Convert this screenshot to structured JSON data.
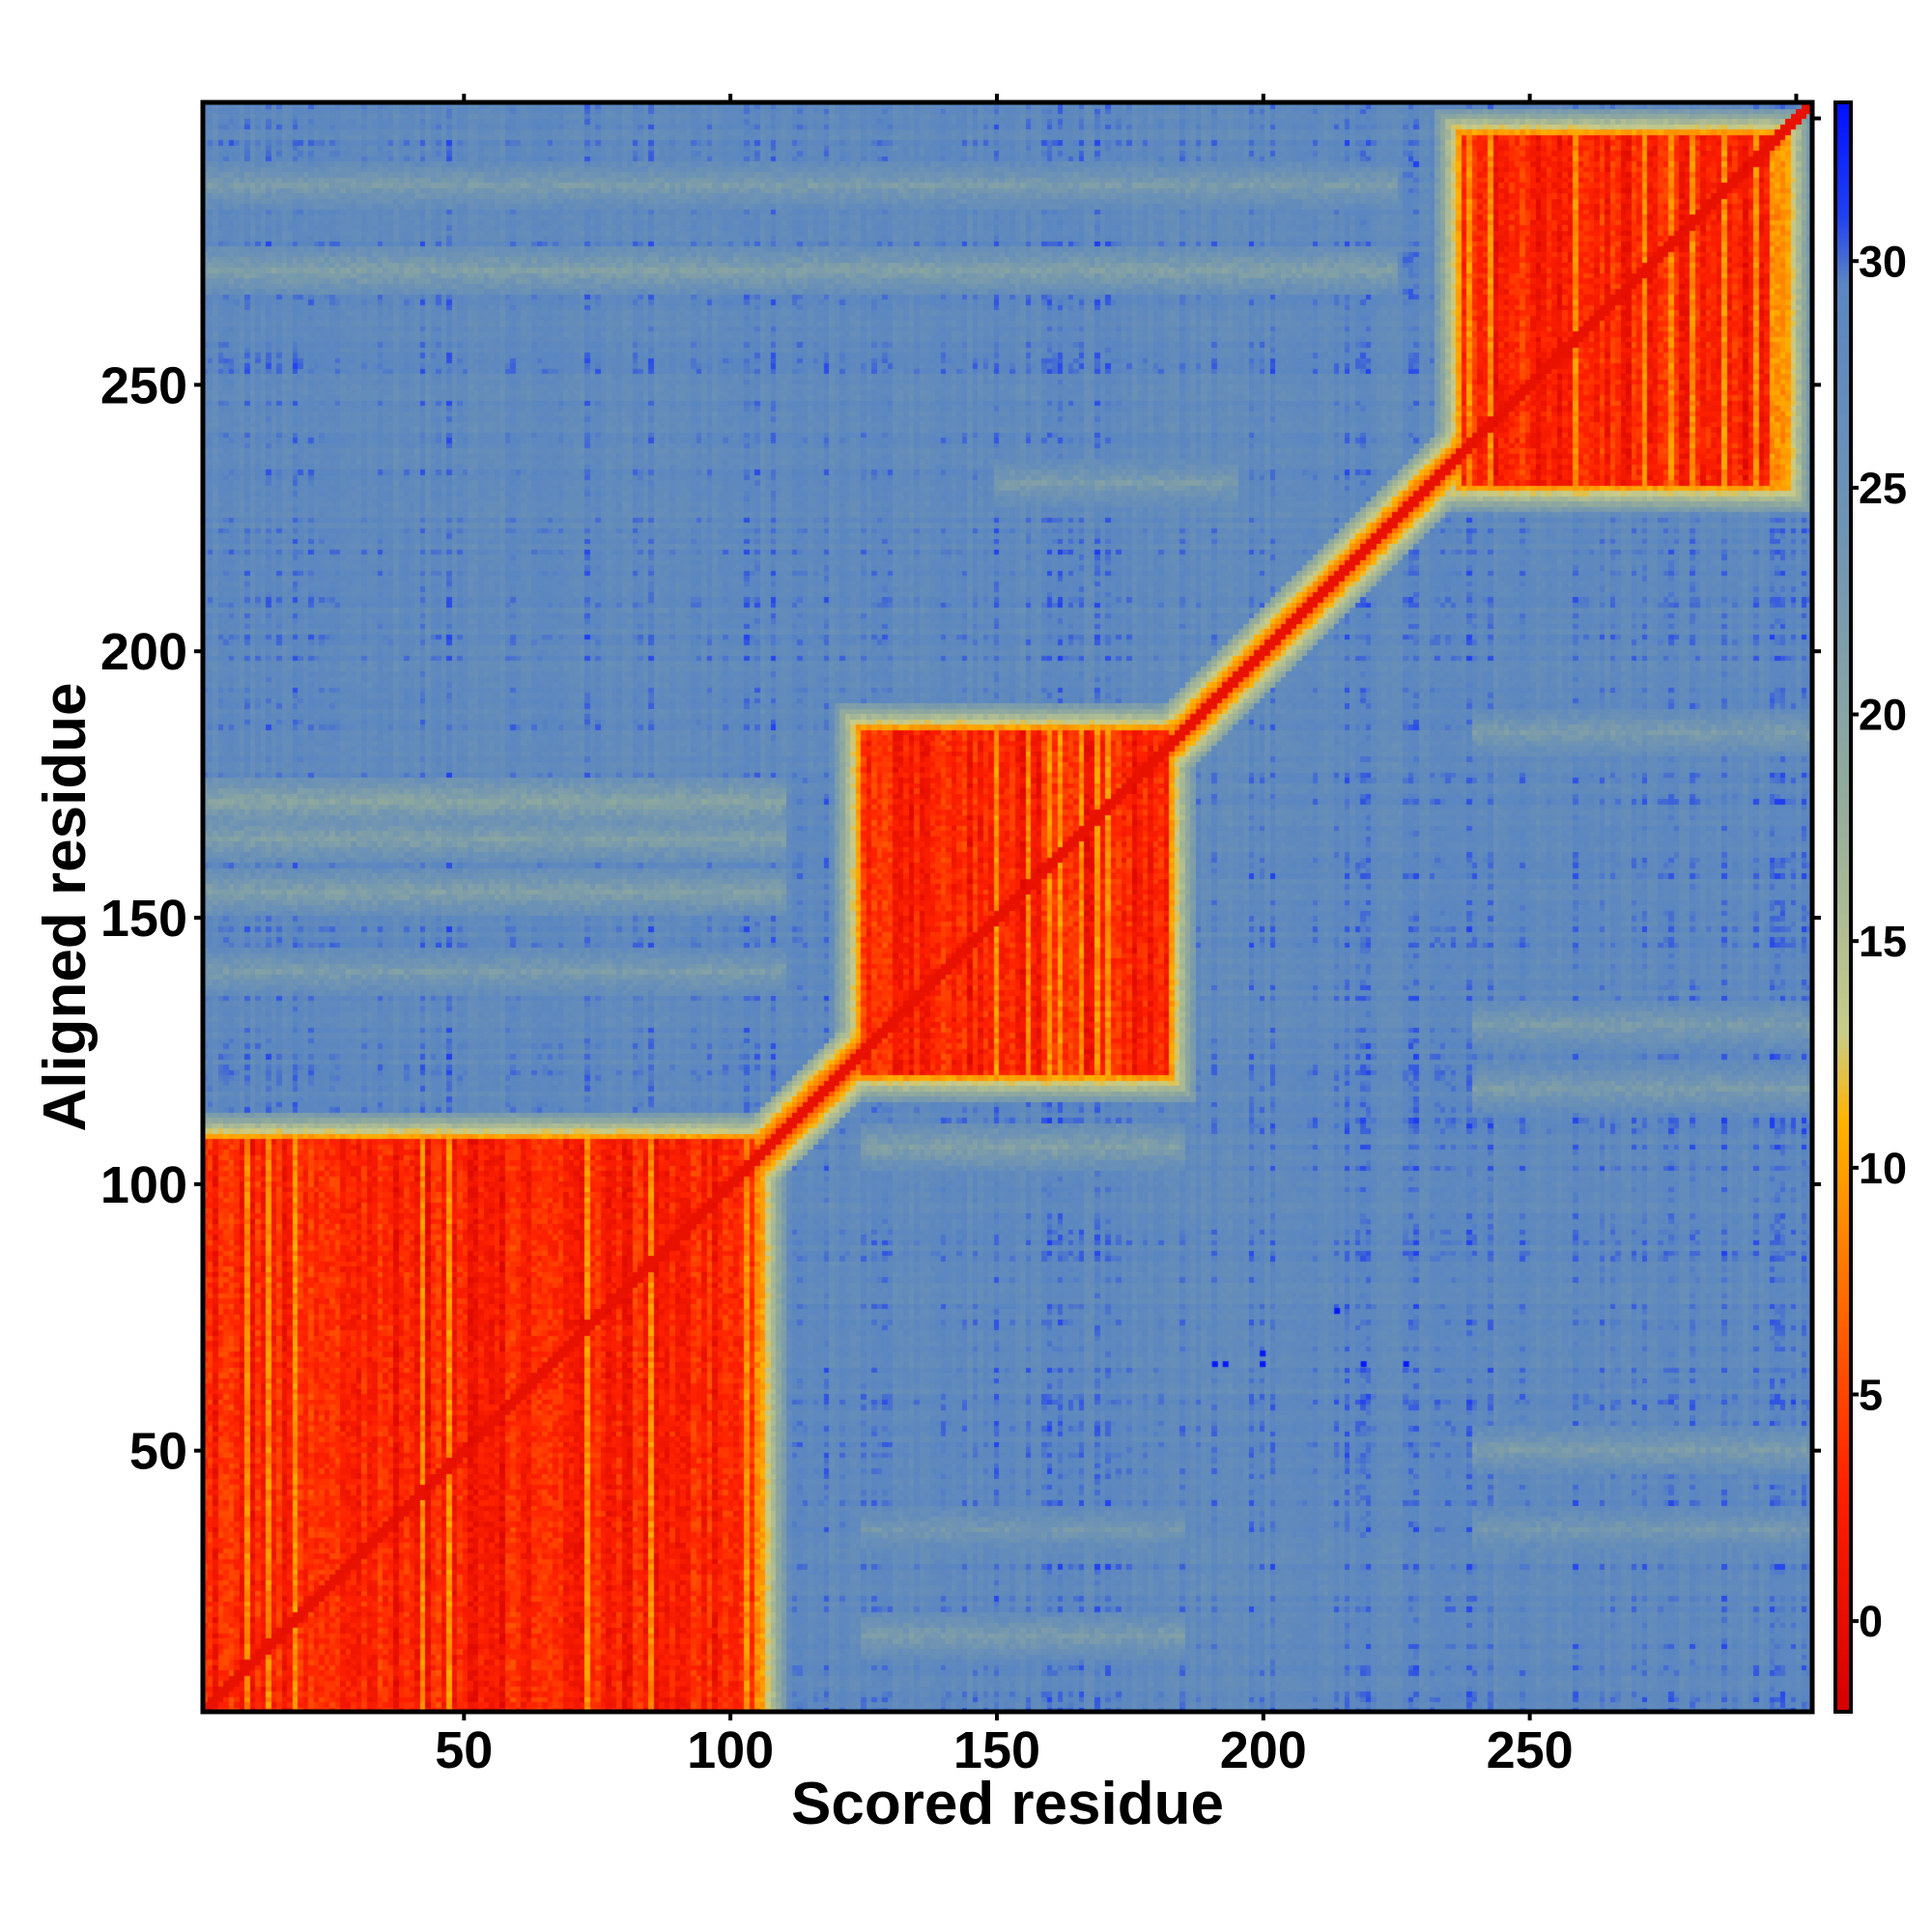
{
  "chart_data": {
    "type": "heatmap",
    "title": "",
    "xlabel": "Scored residue",
    "ylabel": "Aligned residue",
    "n_residues": 303,
    "xlim": [
      1,
      303
    ],
    "ylim": [
      1,
      303
    ],
    "x_ticks": [
      50,
      100,
      150,
      200,
      250
    ],
    "y_ticks": [
      50,
      100,
      150,
      200,
      250
    ],
    "minor_ticks_top": [
      50,
      100,
      150,
      200,
      250,
      300
    ],
    "minor_ticks_right": [
      50,
      100,
      150,
      200,
      250,
      300
    ],
    "colorbar": {
      "ticks": [
        0,
        5,
        10,
        15,
        20,
        25,
        30
      ],
      "range": [
        -2,
        33.5
      ],
      "stops": [
        {
          "value": -2,
          "color": "#d40000"
        },
        {
          "value": 3,
          "color": "#ff2200"
        },
        {
          "value": 8,
          "color": "#ff7a00"
        },
        {
          "value": 11,
          "color": "#ffb300"
        },
        {
          "value": 13,
          "color": "#c8cc8a"
        },
        {
          "value": 18,
          "color": "#94ac9c"
        },
        {
          "value": 24,
          "color": "#6f94b4"
        },
        {
          "value": 29.5,
          "color": "#5a86c2"
        },
        {
          "value": 31,
          "color": "#2040f0"
        },
        {
          "value": 33.5,
          "color": "#0010ff"
        }
      ]
    },
    "background_value": 28,
    "diagonal_value": 0.5,
    "domains": [
      {
        "x_range": [
          1,
          105
        ],
        "y_range": [
          1,
          108
        ],
        "value": 3
      },
      {
        "x_range": [
          125,
          182
        ],
        "y_range": [
          121,
          185
        ],
        "value": 3
      },
      {
        "x_range": [
          238,
          298
        ],
        "y_range": [
          232,
          297
        ],
        "value": 3
      }
    ],
    "diagonal_segments": [
      {
        "from": [
          105,
          105
        ],
        "to": [
          125,
          125
        ],
        "value": 3
      },
      {
        "from": [
          182,
          182
        ],
        "to": [
          238,
          238
        ],
        "value": 4
      }
    ],
    "horizontal_bands": [
      {
        "y": 272,
        "x_range": [
          1,
          225
        ],
        "value": 21
      },
      {
        "y": 288,
        "x_range": [
          1,
          225
        ],
        "value": 22
      },
      {
        "y": 232,
        "x_range": [
          150,
          195
        ],
        "value": 22
      },
      {
        "y": 172,
        "x_range": [
          1,
          110
        ],
        "value": 20
      },
      {
        "y": 165,
        "x_range": [
          1,
          110
        ],
        "value": 21
      },
      {
        "y": 155,
        "x_range": [
          1,
          110
        ],
        "value": 21
      },
      {
        "y": 140,
        "x_range": [
          1,
          110
        ],
        "value": 22
      },
      {
        "y": 107,
        "x_range": [
          125,
          185
        ],
        "value": 21
      },
      {
        "y": 130,
        "x_range": [
          240,
          303
        ],
        "value": 22
      },
      {
        "y": 118,
        "x_range": [
          240,
          303
        ],
        "value": 22
      },
      {
        "y": 185,
        "x_range": [
          240,
          303
        ],
        "value": 22
      },
      {
        "y": 50,
        "x_range": [
          240,
          303
        ],
        "value": 22
      },
      {
        "y": 35,
        "x_range": [
          240,
          303
        ],
        "value": 23
      },
      {
        "y": 15,
        "x_range": [
          125,
          185
        ],
        "value": 22
      },
      {
        "y": 35,
        "x_range": [
          125,
          185
        ],
        "value": 23
      }
    ],
    "outlier_points": [
      {
        "x": 191,
        "y": 66,
        "value": 33
      },
      {
        "x": 193,
        "y": 66,
        "value": 33
      },
      {
        "x": 200,
        "y": 66,
        "value": 33
      },
      {
        "x": 200,
        "y": 68,
        "value": 33
      },
      {
        "x": 214,
        "y": 76,
        "value": 33
      },
      {
        "x": 219,
        "y": 66,
        "value": 33
      },
      {
        "x": 227,
        "y": 66,
        "value": 33
      }
    ]
  }
}
